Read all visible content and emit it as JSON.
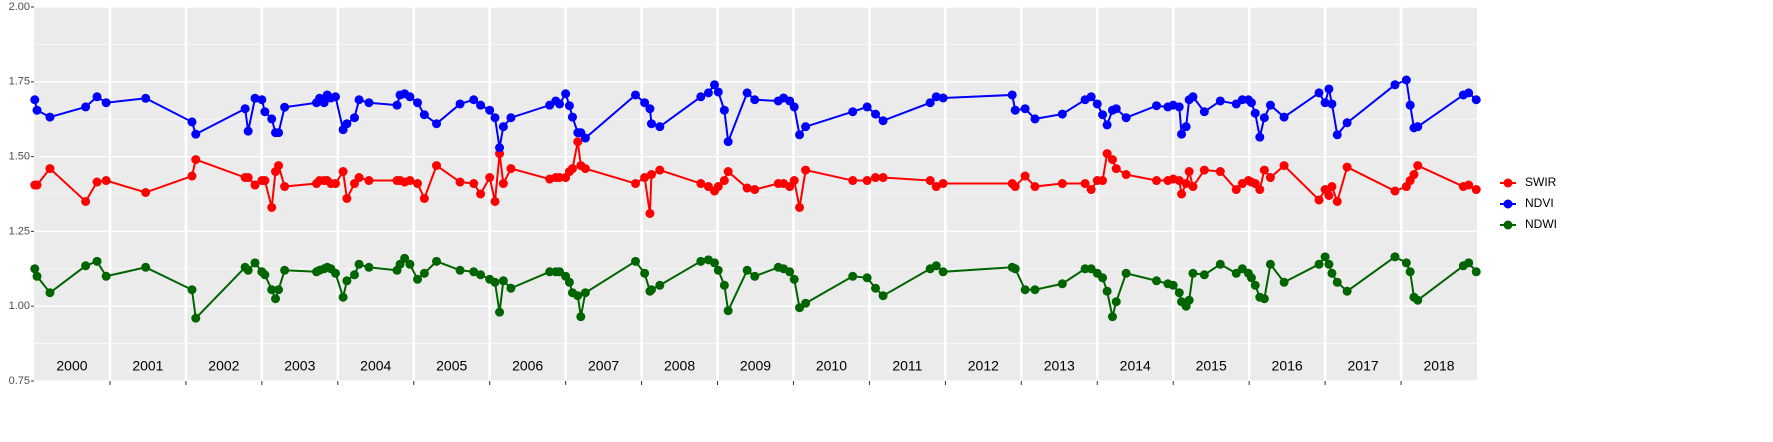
{
  "chart_data": {
    "type": "line",
    "x": [
      2000.01,
      2000.04,
      2000.21,
      2000.68,
      2000.83,
      2000.95,
      2001.47,
      2002.08,
      2002.13,
      2002.78,
      2002.82,
      2002.91,
      2003.0,
      2003.04,
      2003.13,
      2003.18,
      2003.22,
      2003.3,
      2003.72,
      2003.76,
      2003.82,
      2003.86,
      2003.91,
      2003.97,
      2004.07,
      2004.12,
      2004.22,
      2004.28,
      2004.41,
      2004.78,
      2004.82,
      2004.88,
      2004.95,
      2005.05,
      2005.14,
      2005.3,
      2005.61,
      2005.79,
      2005.88,
      2006.0,
      2006.07,
      2006.13,
      2006.18,
      2006.28,
      2006.79,
      2006.87,
      2006.92,
      2007.0,
      2007.05,
      2007.09,
      2007.16,
      2007.2,
      2007.26,
      2007.92,
      2008.04,
      2008.11,
      2008.13,
      2008.24,
      2008.78,
      2008.88,
      2008.96,
      2009.01,
      2009.09,
      2009.14,
      2009.39,
      2009.49,
      2009.8,
      2009.87,
      2009.95,
      2010.01,
      2010.08,
      2010.16,
      2010.78,
      2010.97,
      2011.08,
      2011.18,
      2011.8,
      2011.88,
      2011.97,
      2012.88,
      2012.92,
      2013.05,
      2013.18,
      2013.54,
      2013.84,
      2013.92,
      2014.0,
      2014.07,
      2014.13,
      2014.2,
      2014.25,
      2014.38,
      2014.78,
      2014.93,
      2015.0,
      2015.08,
      2015.11,
      2015.17,
      2015.21,
      2015.26,
      2015.41,
      2015.62,
      2015.83,
      2015.91,
      2015.99,
      2016.03,
      2016.08,
      2016.14,
      2016.2,
      2016.28,
      2016.46,
      2016.92,
      2017.0,
      2017.05,
      2017.09,
      2017.16,
      2017.29,
      2017.92,
      2018.07,
      2018.12,
      2018.17,
      2018.22,
      2018.82,
      2018.89,
      2018.99
    ],
    "series": [
      {
        "name": "SWIR",
        "color": "#ff0000",
        "values": [
          1.405,
          1.405,
          1.46,
          1.35,
          1.415,
          1.42,
          1.38,
          1.435,
          1.49,
          1.43,
          1.43,
          1.405,
          1.42,
          1.42,
          1.33,
          1.45,
          1.47,
          1.4,
          1.41,
          1.42,
          1.42,
          1.42,
          1.41,
          1.41,
          1.45,
          1.36,
          1.41,
          1.43,
          1.42,
          1.42,
          1.42,
          1.415,
          1.42,
          1.41,
          1.36,
          1.47,
          1.415,
          1.41,
          1.375,
          1.43,
          1.35,
          1.51,
          1.41,
          1.46,
          1.425,
          1.43,
          1.43,
          1.43,
          1.45,
          1.46,
          1.55,
          1.47,
          1.46,
          1.41,
          1.43,
          1.31,
          1.44,
          1.455,
          1.41,
          1.4,
          1.385,
          1.4,
          1.42,
          1.45,
          1.395,
          1.39,
          1.41,
          1.41,
          1.4,
          1.42,
          1.33,
          1.455,
          1.42,
          1.42,
          1.43,
          1.43,
          1.42,
          1.4,
          1.41,
          1.41,
          1.4,
          1.435,
          1.4,
          1.41,
          1.41,
          1.39,
          1.42,
          1.42,
          1.51,
          1.49,
          1.46,
          1.44,
          1.42,
          1.42,
          1.425,
          1.42,
          1.375,
          1.41,
          1.45,
          1.4,
          1.455,
          1.45,
          1.39,
          1.41,
          1.42,
          1.415,
          1.41,
          1.39,
          1.455,
          1.43,
          1.47,
          1.355,
          1.39,
          1.37,
          1.4,
          1.35,
          1.465,
          1.385,
          1.4,
          1.42,
          1.44,
          1.47,
          1.4,
          1.405,
          1.39
        ]
      },
      {
        "name": "NDVI",
        "color": "#0000ff",
        "values": [
          1.69,
          1.655,
          1.632,
          1.666,
          1.7,
          1.68,
          1.695,
          1.616,
          1.575,
          1.66,
          1.585,
          1.695,
          1.69,
          1.65,
          1.626,
          1.58,
          1.58,
          1.665,
          1.68,
          1.695,
          1.68,
          1.706,
          1.696,
          1.7,
          1.59,
          1.61,
          1.63,
          1.69,
          1.68,
          1.672,
          1.706,
          1.71,
          1.7,
          1.68,
          1.64,
          1.61,
          1.676,
          1.69,
          1.672,
          1.655,
          1.63,
          1.53,
          1.6,
          1.63,
          1.672,
          1.686,
          1.676,
          1.71,
          1.67,
          1.632,
          1.58,
          1.58,
          1.562,
          1.706,
          1.68,
          1.66,
          1.61,
          1.6,
          1.7,
          1.713,
          1.74,
          1.716,
          1.655,
          1.55,
          1.713,
          1.69,
          1.686,
          1.696,
          1.686,
          1.666,
          1.573,
          1.6,
          1.65,
          1.666,
          1.642,
          1.62,
          1.68,
          1.7,
          1.696,
          1.706,
          1.655,
          1.66,
          1.626,
          1.642,
          1.69,
          1.7,
          1.676,
          1.64,
          1.606,
          1.655,
          1.66,
          1.63,
          1.67,
          1.666,
          1.672,
          1.666,
          1.575,
          1.6,
          1.69,
          1.7,
          1.65,
          1.686,
          1.676,
          1.69,
          1.69,
          1.68,
          1.645,
          1.565,
          1.63,
          1.672,
          1.632,
          1.713,
          1.68,
          1.726,
          1.676,
          1.573,
          1.613,
          1.74,
          1.756,
          1.672,
          1.596,
          1.6,
          1.706,
          1.713,
          1.69
        ]
      },
      {
        "name": "NDWI",
        "color": "#006400",
        "values": [
          1.125,
          1.1,
          1.045,
          1.135,
          1.15,
          1.1,
          1.13,
          1.055,
          0.96,
          1.13,
          1.12,
          1.145,
          1.115,
          1.105,
          1.055,
          1.025,
          1.055,
          1.12,
          1.115,
          1.12,
          1.125,
          1.13,
          1.125,
          1.11,
          1.03,
          1.085,
          1.105,
          1.14,
          1.13,
          1.12,
          1.14,
          1.16,
          1.14,
          1.09,
          1.11,
          1.15,
          1.12,
          1.115,
          1.105,
          1.09,
          1.08,
          0.98,
          1.085,
          1.06,
          1.115,
          1.115,
          1.115,
          1.1,
          1.08,
          1.045,
          1.035,
          0.965,
          1.045,
          1.15,
          1.11,
          1.05,
          1.055,
          1.07,
          1.15,
          1.155,
          1.145,
          1.12,
          1.07,
          0.985,
          1.12,
          1.1,
          1.13,
          1.125,
          1.115,
          1.09,
          0.995,
          1.01,
          1.1,
          1.095,
          1.06,
          1.035,
          1.125,
          1.135,
          1.115,
          1.13,
          1.125,
          1.055,
          1.055,
          1.075,
          1.125,
          1.125,
          1.11,
          1.095,
          1.05,
          0.965,
          1.015,
          1.11,
          1.085,
          1.075,
          1.07,
          1.045,
          1.015,
          1.0,
          1.02,
          1.11,
          1.105,
          1.14,
          1.11,
          1.125,
          1.11,
          1.095,
          1.07,
          1.03,
          1.025,
          1.14,
          1.08,
          1.14,
          1.165,
          1.14,
          1.11,
          1.08,
          1.05,
          1.165,
          1.145,
          1.115,
          1.03,
          1.02,
          1.135,
          1.145,
          1.115
        ]
      }
    ],
    "xlim": [
      2000,
      2019
    ],
    "xticks": [
      2001,
      2002,
      2003,
      2004,
      2005,
      2006,
      2007,
      2008,
      2009,
      2010,
      2011,
      2012,
      2013,
      2014,
      2015,
      2016,
      2017,
      2018
    ],
    "year_labels": [
      2000,
      2001,
      2002,
      2003,
      2004,
      2005,
      2006,
      2007,
      2008,
      2009,
      2010,
      2011,
      2012,
      2013,
      2014,
      2015,
      2016,
      2017,
      2018
    ],
    "ylim": [
      0.75,
      2.0
    ],
    "yticks": [
      {
        "value": 0.75,
        "label": "0.75"
      },
      {
        "value": 1.0,
        "label": "1.00"
      },
      {
        "value": 1.25,
        "label": "1.25"
      },
      {
        "value": 1.5,
        "label": "1.50"
      },
      {
        "value": 1.75,
        "label": "1.75"
      },
      {
        "value": 2.0,
        "label": "2.00"
      }
    ],
    "grid": true,
    "legend": "right"
  }
}
